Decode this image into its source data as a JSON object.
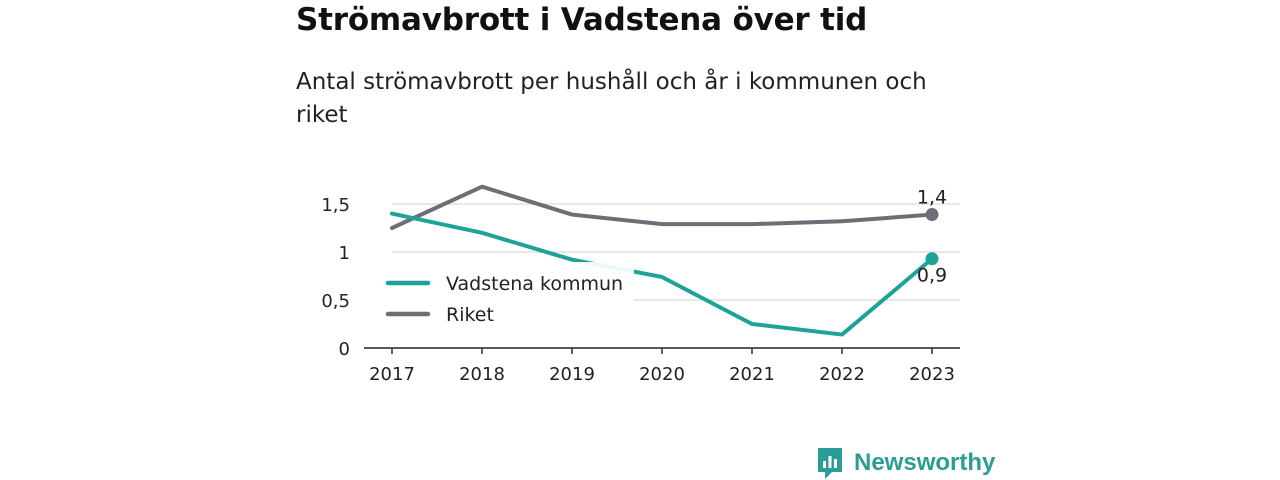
{
  "header": {
    "title": "Strömavbrott i Vadstena över tid",
    "subtitle": "Antal strömavbrott per hushåll och år i kommunen och riket"
  },
  "brand": {
    "name": "Newsworthy",
    "color": "#2a9d96"
  },
  "chart_data": {
    "type": "line",
    "title": "Strömavbrott i Vadstena över tid",
    "subtitle": "Antal strömavbrott per hushåll och år i kommunen och riket",
    "x": [
      "2017",
      "2018",
      "2019",
      "2020",
      "2021",
      "2022",
      "2023"
    ],
    "ylim": [
      0,
      1.5
    ],
    "yticks": [
      {
        "value": 0,
        "label": "0"
      },
      {
        "value": 0.5,
        "label": "0,5"
      },
      {
        "value": 1,
        "label": "1"
      },
      {
        "value": 1.5,
        "label": "1,5"
      }
    ],
    "grid": true,
    "legend": "bottom-left",
    "series": [
      {
        "name": "Vadstena kommun",
        "color": "#1fa396",
        "values": [
          1.4,
          1.2,
          0.92,
          0.74,
          0.25,
          0.14,
          0.93
        ],
        "end_label": "0,9"
      },
      {
        "name": "Riket",
        "color": "#6e6e76",
        "values": [
          1.25,
          1.68,
          1.39,
          1.29,
          1.29,
          1.32,
          1.39
        ],
        "end_label": "1,4"
      }
    ]
  }
}
